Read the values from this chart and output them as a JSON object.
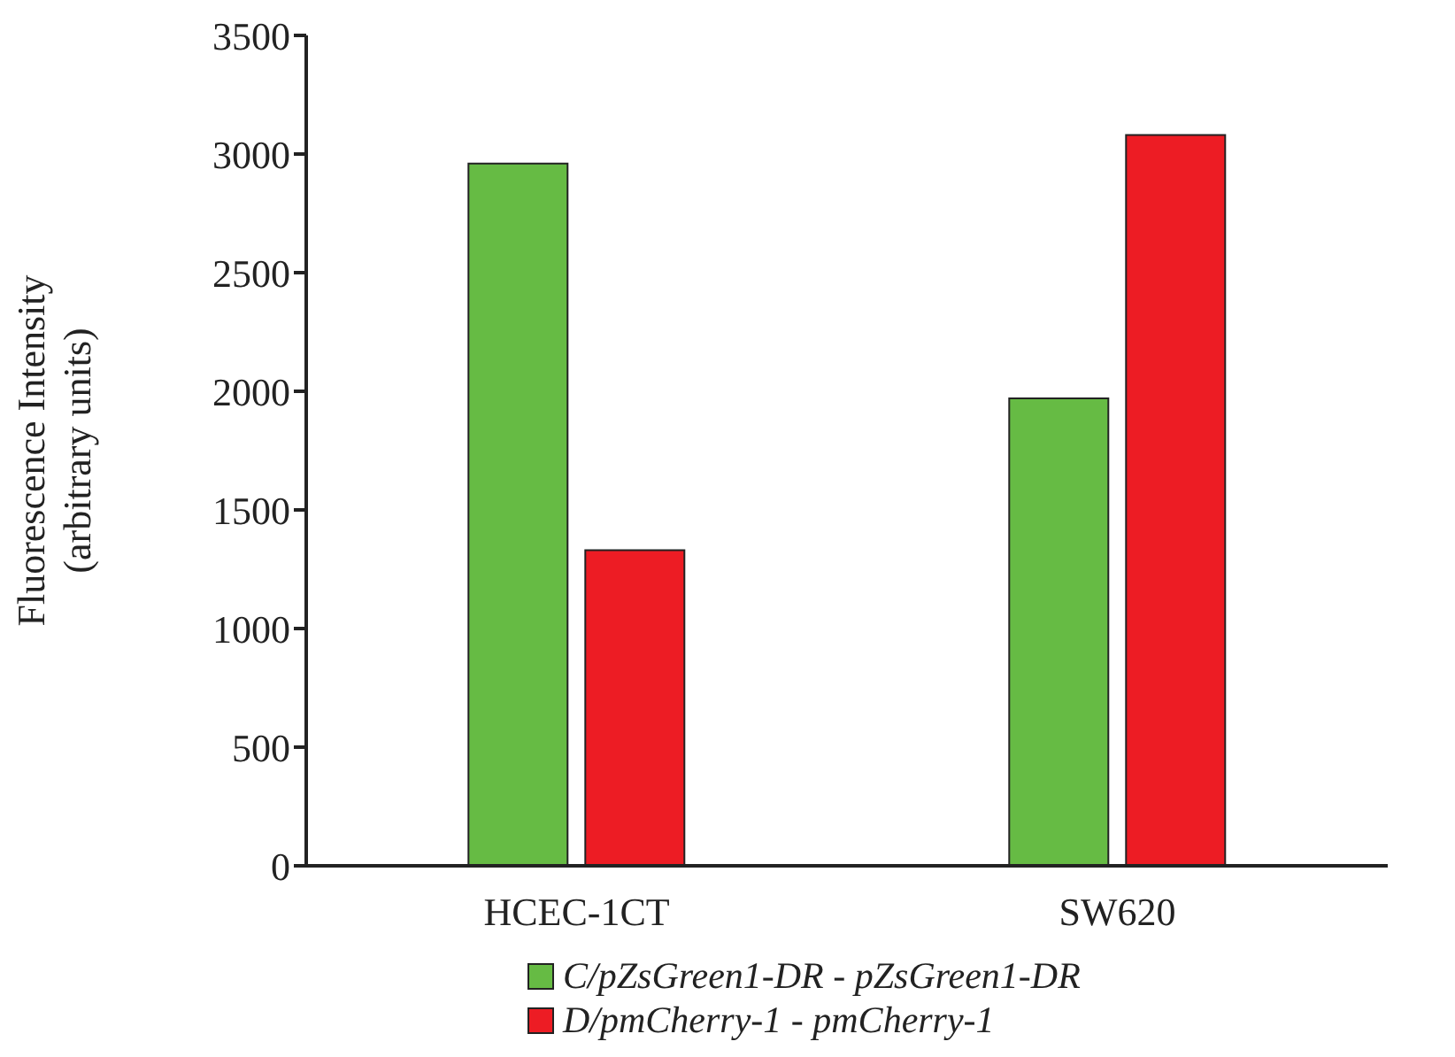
{
  "chart_data": {
    "type": "bar",
    "ylabel": "Fluorescence Intensity\n(arbitrary units)",
    "categories": [
      "HCEC-1CT",
      "SW620"
    ],
    "series": [
      {
        "name": "C/pZsGreen1-DR - pZsGreen1-DR",
        "color": "#66bb44",
        "values": [
          2960,
          1970
        ]
      },
      {
        "name": "D/pmCherry-1 - pmCherry-1",
        "color": "#ed1c24",
        "values": [
          1330,
          3080
        ]
      }
    ],
    "ylim": [
      0,
      3500
    ],
    "yticks": [
      0,
      500,
      1000,
      1500,
      2000,
      2500,
      3000,
      3500
    ],
    "grid": false,
    "legend": "bottom"
  }
}
